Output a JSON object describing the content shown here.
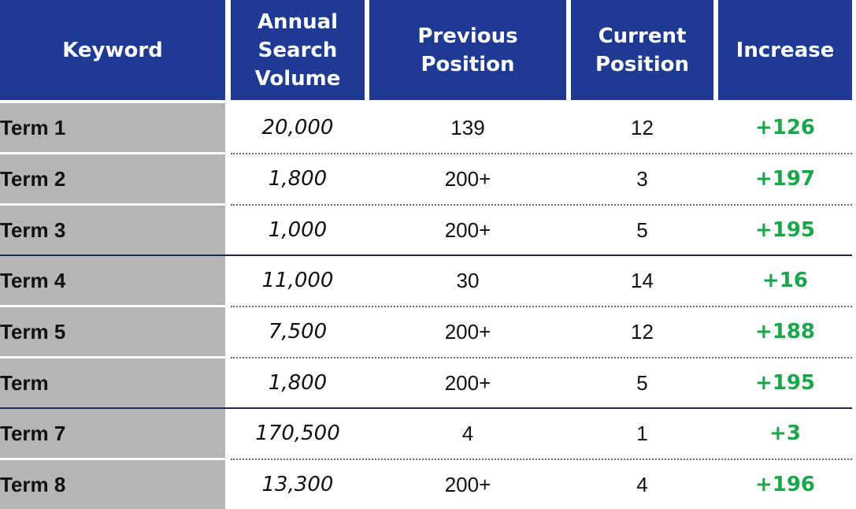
{
  "table": {
    "headers": {
      "keyword": "Keyword",
      "annual_search_volume": "Annual\nSearch\nVolume",
      "previous_position": "Previous\nPosition",
      "current_position": "Current\nPosition",
      "increase": "Increase"
    },
    "rows": [
      {
        "keyword": "Term 1",
        "volume": "20,000",
        "previous": "139",
        "current": "12",
        "increase": "+126"
      },
      {
        "keyword": "Term 2",
        "volume": "1,800",
        "previous": "200+",
        "current": "3",
        "increase": "+197"
      },
      {
        "keyword": "Term 3",
        "volume": "1,000",
        "previous": "200+",
        "current": "5",
        "increase": "+195"
      },
      {
        "keyword": "Term 4",
        "volume": "11,000",
        "previous": "30",
        "current": "14",
        "increase": "+16"
      },
      {
        "keyword": "Term 5",
        "volume": "7,500",
        "previous": "200+",
        "current": "12",
        "increase": "+188"
      },
      {
        "keyword": "Term",
        "volume": "1,800",
        "previous": "200+",
        "current": "5",
        "increase": "+195"
      },
      {
        "keyword": "Term 7",
        "volume": "170,500",
        "previous": "4",
        "current": "1",
        "increase": "+3"
      },
      {
        "keyword": "Term 8",
        "volume": "13,300",
        "previous": "200+",
        "current": "4",
        "increase": "+196"
      }
    ]
  },
  "colors": {
    "header_bg": "#1f3a93",
    "header_text": "#ffffff",
    "keyword_bg": "#b5b5b5",
    "increase_text": "#1aa64a",
    "group_divider": "#1a2a52"
  }
}
